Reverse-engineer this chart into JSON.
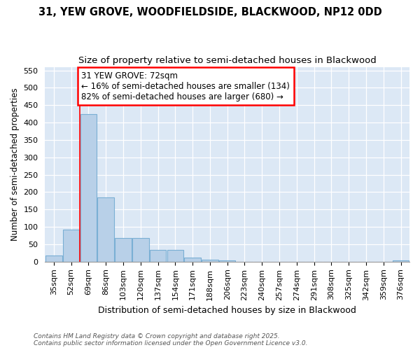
{
  "title1": "31, YEW GROVE, WOODFIELDSIDE, BLACKWOOD, NP12 0DD",
  "title2": "Size of property relative to semi-detached houses in Blackwood",
  "xlabel": "Distribution of semi-detached houses by size in Blackwood",
  "ylabel": "Number of semi-detached properties",
  "categories": [
    "35sqm",
    "52sqm",
    "69sqm",
    "86sqm",
    "103sqm",
    "120sqm",
    "137sqm",
    "154sqm",
    "171sqm",
    "188sqm",
    "206sqm",
    "223sqm",
    "240sqm",
    "257sqm",
    "274sqm",
    "291sqm",
    "308sqm",
    "325sqm",
    "342sqm",
    "359sqm",
    "376sqm"
  ],
  "values": [
    18,
    93,
    425,
    184,
    68,
    68,
    33,
    33,
    12,
    6,
    3,
    0,
    0,
    0,
    0,
    0,
    0,
    0,
    0,
    0,
    3
  ],
  "bar_color": "#b8d0e8",
  "bar_edge_color": "#7aafd4",
  "red_line_index": 2,
  "annotation_title": "31 YEW GROVE: 72sqm",
  "annotation_line1": "← 16% of semi-detached houses are smaller (134)",
  "annotation_line2": "82% of semi-detached houses are larger (680) →",
  "annotation_box_color": "white",
  "annotation_box_edge": "red",
  "red_line_color": "red",
  "ylim": [
    0,
    560
  ],
  "yticks": [
    0,
    50,
    100,
    150,
    200,
    250,
    300,
    350,
    400,
    450,
    500,
    550
  ],
  "footer1": "Contains HM Land Registry data © Crown copyright and database right 2025.",
  "footer2": "Contains public sector information licensed under the Open Government Licence v3.0.",
  "fig_bg_color": "#ffffff",
  "plot_bg_color": "#dce8f5",
  "title_fontsize": 10.5,
  "subtitle_fontsize": 9.5,
  "tick_fontsize": 8,
  "ylabel_fontsize": 8.5,
  "xlabel_fontsize": 9,
  "ann_fontsize": 8.5
}
